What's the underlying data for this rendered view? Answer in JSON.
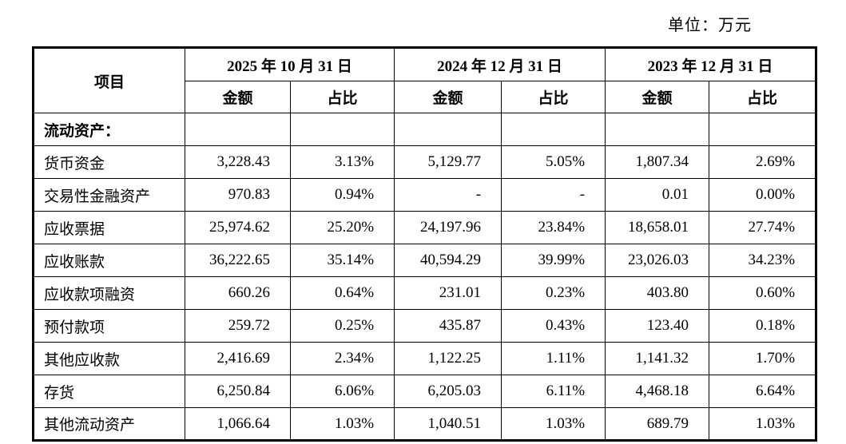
{
  "unit_label": "单位：万元",
  "table": {
    "item_header": "项目",
    "col_groups": [
      {
        "date": "2025 年 10 月 31 日",
        "amount_label": "金额",
        "ratio_label": "占比"
      },
      {
        "date": "2024 年 12 月 31 日",
        "amount_label": "金额",
        "ratio_label": "占比"
      },
      {
        "date": "2023 年 12 月 31 日",
        "amount_label": "金额",
        "ratio_label": "占比"
      }
    ],
    "section_row": {
      "label": "流动资产："
    },
    "rows": [
      {
        "item": "货币资金",
        "values": [
          "3,228.43",
          "3.13%",
          "5,129.77",
          "5.05%",
          "1,807.34",
          "2.69%"
        ]
      },
      {
        "item": "交易性金融资产",
        "values": [
          "970.83",
          "0.94%",
          "-",
          "-",
          "0.01",
          "0.00%"
        ]
      },
      {
        "item": "应收票据",
        "values": [
          "25,974.62",
          "25.20%",
          "24,197.96",
          "23.84%",
          "18,658.01",
          "27.74%"
        ]
      },
      {
        "item": "应收账款",
        "values": [
          "36,222.65",
          "35.14%",
          "40,594.29",
          "39.99%",
          "23,026.03",
          "34.23%"
        ]
      },
      {
        "item": "应收款项融资",
        "values": [
          "660.26",
          "0.64%",
          "231.01",
          "0.23%",
          "403.80",
          "0.60%"
        ]
      },
      {
        "item": "预付款项",
        "values": [
          "259.72",
          "0.25%",
          "435.87",
          "0.43%",
          "123.40",
          "0.18%"
        ]
      },
      {
        "item": "其他应收款",
        "values": [
          "2,416.69",
          "2.34%",
          "1,122.25",
          "1.11%",
          "1,141.32",
          "1.70%"
        ]
      },
      {
        "item": "存货",
        "values": [
          "6,250.84",
          "6.06%",
          "6,205.03",
          "6.11%",
          "4,468.18",
          "6.64%"
        ]
      },
      {
        "item": "其他流动资产",
        "values": [
          "1,066.64",
          "1.03%",
          "1,040.51",
          "1.03%",
          "689.79",
          "1.03%"
        ]
      }
    ]
  }
}
